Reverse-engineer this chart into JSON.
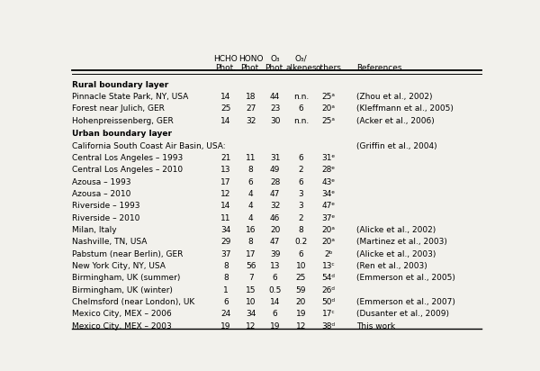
{
  "sections": [
    {
      "section_title": "Rural boundary layer",
      "rows": [
        {
          "location": "Pinnacle State Park, NY, USA",
          "hcho": "14",
          "hono": "18",
          "o3": "44",
          "o3alk": "n.n.",
          "others": "25ᵃ",
          "ref": "(Zhou et al., 2002)"
        },
        {
          "location": "Forest near Julich, GER",
          "hcho": "25",
          "hono": "27",
          "o3": "23",
          "o3alk": "6",
          "others": "20ᵃ",
          "ref": "(Kleffmann et al., 2005)"
        },
        {
          "location": "Hohenpreissenberg, GER",
          "hcho": "14",
          "hono": "32",
          "o3": "30",
          "o3alk": "n.n.",
          "others": "25ᵃ",
          "ref": "(Acker et al., 2006)"
        }
      ]
    },
    {
      "section_title": "Urban boundary layer",
      "rows": [
        {
          "location": "California South Coast Air Basin, USA:",
          "hcho": "",
          "hono": "",
          "o3": "",
          "o3alk": "",
          "others": "",
          "ref": "(Griffin et al., 2004)"
        },
        {
          "location": "Central Los Angeles – 1993",
          "hcho": "21",
          "hono": "11",
          "o3": "31",
          "o3alk": "6",
          "others": "31ᵉ",
          "ref": ""
        },
        {
          "location": "Central Los Angeles – 2010",
          "hcho": "13",
          "hono": "8",
          "o3": "49",
          "o3alk": "2",
          "others": "28ᵉ",
          "ref": ""
        },
        {
          "location": "Azousa – 1993",
          "hcho": "17",
          "hono": "6",
          "o3": "28",
          "o3alk": "6",
          "others": "43ᵉ",
          "ref": ""
        },
        {
          "location": "Azousa – 2010",
          "hcho": "12",
          "hono": "4",
          "o3": "47",
          "o3alk": "3",
          "others": "34ᵉ",
          "ref": ""
        },
        {
          "location": "Riverside – 1993",
          "hcho": "14",
          "hono": "4",
          "o3": "32",
          "o3alk": "3",
          "others": "47ᵉ",
          "ref": ""
        },
        {
          "location": "Riverside – 2010",
          "hcho": "11",
          "hono": "4",
          "o3": "46",
          "o3alk": "2",
          "others": "37ᵉ",
          "ref": ""
        },
        {
          "location": "Milan, Italy",
          "hcho": "34",
          "hono": "16",
          "o3": "20",
          "o3alk": "8",
          "others": "20ᵃ",
          "ref": "(Alicke et al., 2002)"
        },
        {
          "location": "Nashville, TN, USA",
          "hcho": "29",
          "hono": "8",
          "o3": "47",
          "o3alk": "0.2",
          "others": "20ᵃ",
          "ref": "(Martinez et al., 2003)"
        },
        {
          "location": "Pabstum (near Berlin), GER",
          "hcho": "37",
          "hono": "17",
          "o3": "39",
          "o3alk": "6",
          "others": "2ᵇ",
          "ref": "(Alicke et al., 2003)"
        },
        {
          "location": "New York City, NY, USA",
          "hcho": "8",
          "hono": "56",
          "o3": "13",
          "o3alk": "10",
          "others": "13ᶜ",
          "ref": "(Ren et al., 2003)"
        },
        {
          "location": "Birmingham, UK (summer)",
          "hcho": "8",
          "hono": "7",
          "o3": "6",
          "o3alk": "25",
          "others": "54ᵈ",
          "ref": "(Emmerson et al., 2005)"
        },
        {
          "location": "Birmingham, UK (winter)",
          "hcho": "1",
          "hono": "15",
          "o3": "0.5",
          "o3alk": "59",
          "others": "26ᵈ",
          "ref": ""
        },
        {
          "location": "Chelmsford (near London), UK",
          "hcho": "6",
          "hono": "10",
          "o3": "14",
          "o3alk": "20",
          "others": "50ᵈ",
          "ref": "(Emmerson et al., 2007)"
        },
        {
          "location": "Mexico City, MEX – 2006",
          "hcho": "24",
          "hono": "34",
          "o3": "6",
          "o3alk": "19",
          "others": "17ᶜ",
          "ref": "(Dusanter et al., 2009)"
        },
        {
          "location": "Mexico City, MEX – 2003",
          "hcho": "19",
          "hono": "12",
          "o3": "19",
          "o3alk": "12",
          "others": "38ᵈ",
          "ref": "This work"
        }
      ]
    }
  ],
  "fig_width": 6.0,
  "fig_height": 4.12,
  "font_size": 6.5,
  "bg_color": "#f2f1ec"
}
